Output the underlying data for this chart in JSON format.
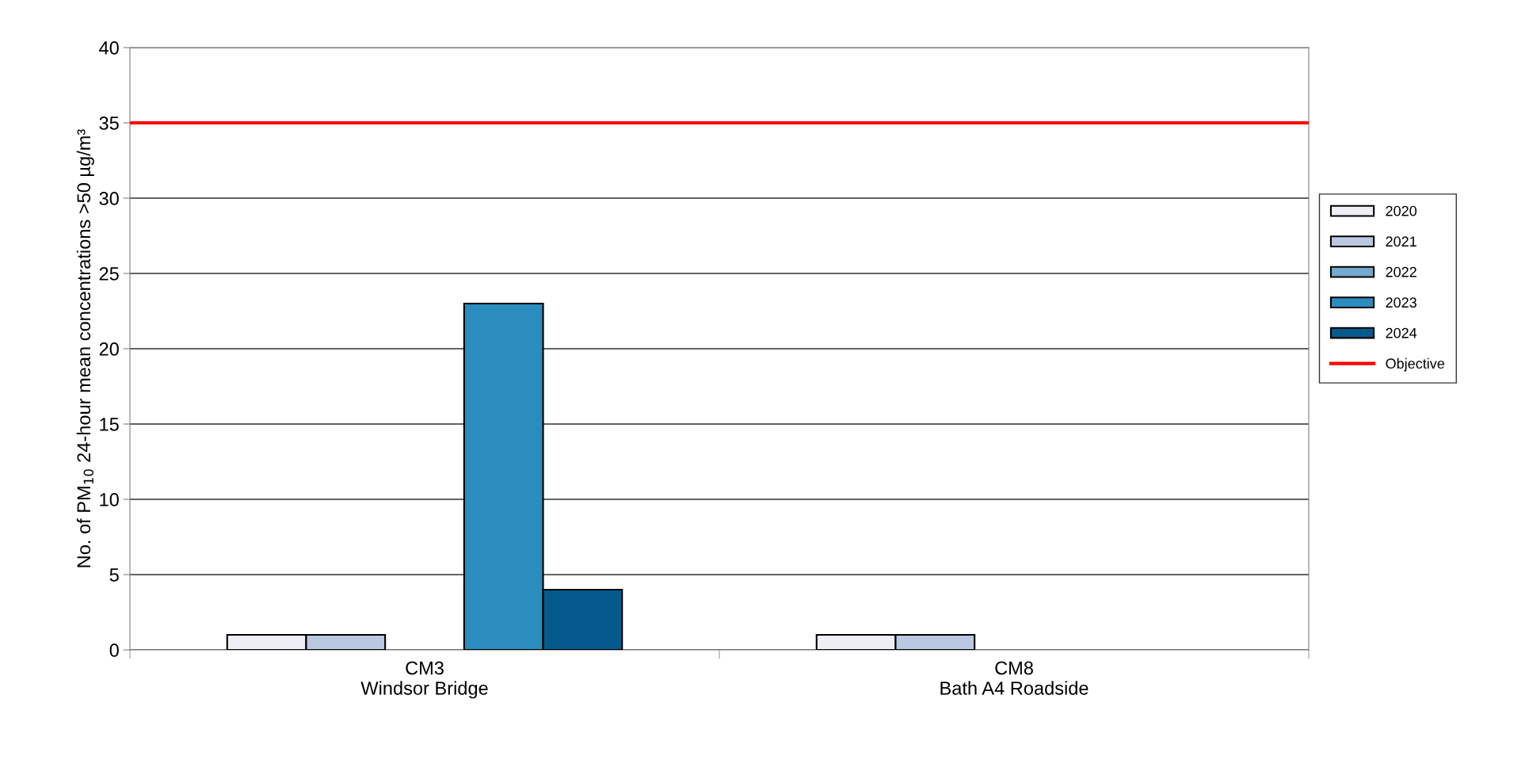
{
  "chart_data": {
    "type": "bar",
    "ylabel": "No. of PM$_{10}$ 24-hour mean concentrations >50 µg/m³",
    "categories": [
      "CM3\nWindsor Bridge",
      "CM8\nBath A4 Roadside"
    ],
    "series": [
      {
        "name": "2020",
        "color": "#efeef5",
        "values": [
          1,
          1
        ]
      },
      {
        "name": "2021",
        "color": "#bac8e2",
        "values": [
          1,
          1
        ]
      },
      {
        "name": "2022",
        "color": "#74a9cf",
        "values": [
          0,
          0
        ]
      },
      {
        "name": "2023",
        "color": "#2b8cbe",
        "values": [
          23,
          0
        ]
      },
      {
        "name": "2024",
        "color": "#045a8d",
        "values": [
          4,
          0
        ]
      }
    ],
    "ref_lines": [
      {
        "axis": "y",
        "value": 35,
        "label": "Objective",
        "color": "#ff0000",
        "line_style": "solid"
      }
    ],
    "ylim": [
      0,
      40
    ],
    "yticks": [
      0,
      5,
      10,
      15,
      20,
      25,
      30,
      35,
      40
    ],
    "grid": "y",
    "legend": "right"
  }
}
